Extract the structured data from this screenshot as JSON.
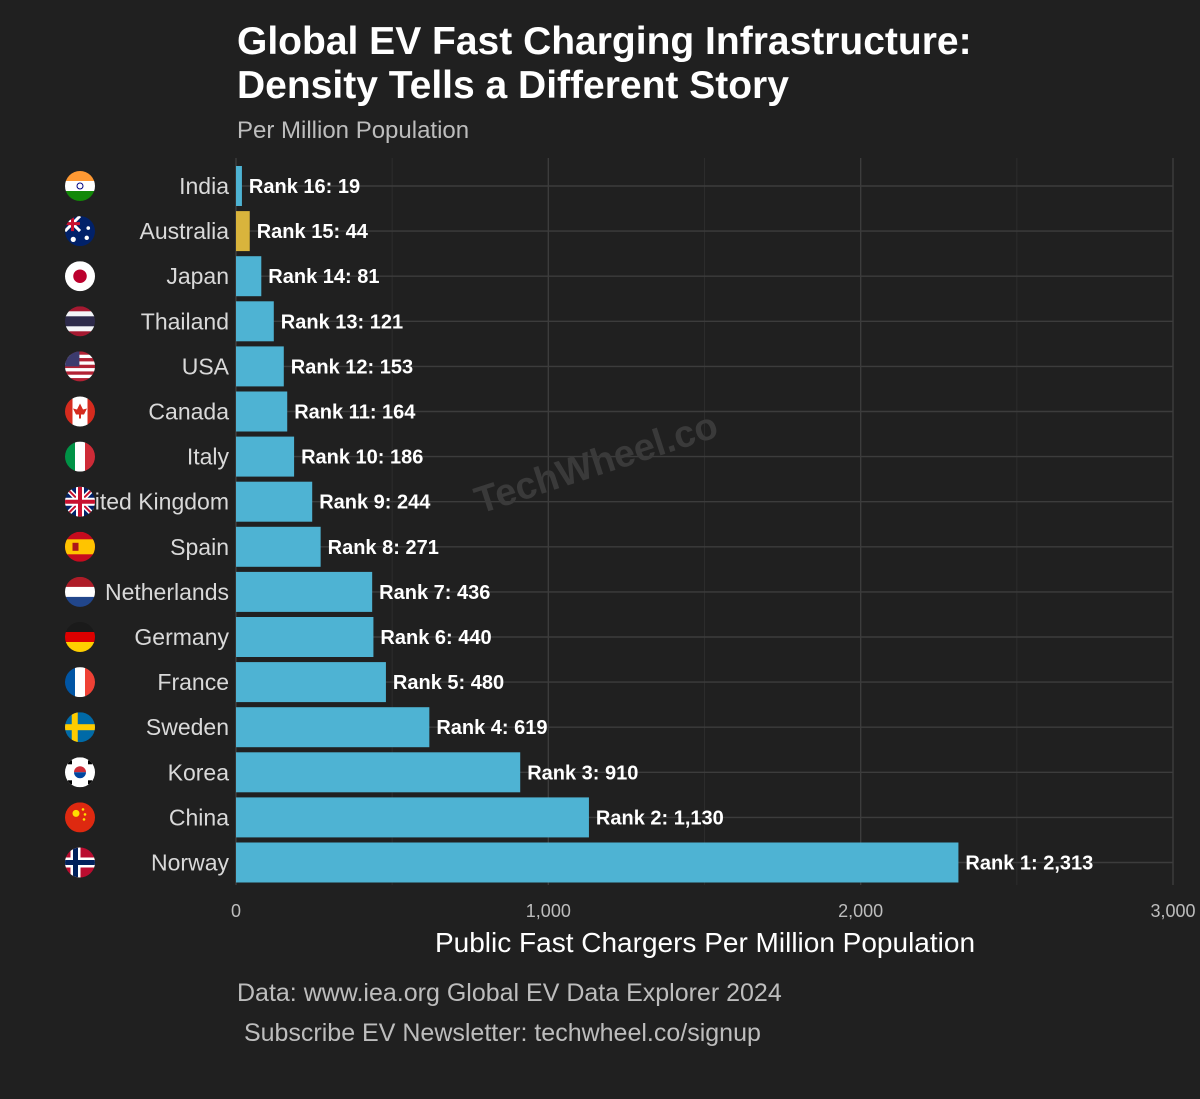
{
  "chart_data": {
    "type": "bar",
    "orientation": "horizontal",
    "title_line1": "Global EV Fast Charging Infrastructure:",
    "title_line2": "Density Tells a Different Story",
    "subtitle": "Per Million Population",
    "xlabel": "Public Fast Chargers Per Million Population",
    "ylabel": "",
    "xlim": [
      0,
      3000
    ],
    "x_ticks": [
      0,
      1000,
      2000,
      3000
    ],
    "x_tick_labels": [
      "0",
      "1,000",
      "2,000",
      "3,000"
    ],
    "grid": true,
    "watermark": "TechWheel.co",
    "categories": [
      "India",
      "Australia",
      "Japan",
      "Thailand",
      "USA",
      "Canada",
      "Italy",
      "United Kingdom",
      "Spain",
      "Netherlands",
      "Germany",
      "France",
      "Sweden",
      "Korea",
      "China",
      "Norway"
    ],
    "values": [
      19,
      44,
      81,
      121,
      153,
      164,
      186,
      244,
      271,
      436,
      440,
      480,
      619,
      910,
      1130,
      2313
    ],
    "ranks": [
      "Rank 16:",
      "Rank 15:",
      "Rank 14:",
      "Rank 13:",
      "Rank 12:",
      "Rank 11:",
      "Rank 10:",
      "Rank 9:",
      "Rank 8:",
      "Rank 7:",
      "Rank 6:",
      "Rank 5:",
      "Rank 4:",
      "Rank 3:",
      "Rank 2:",
      "Rank 1:"
    ],
    "value_labels": [
      "19",
      "44",
      "81",
      "121",
      "153",
      "164",
      "186",
      "244",
      "271",
      "436",
      "440",
      "480",
      "619",
      "910",
      "1,130",
      "2,313"
    ],
    "highlight_category": "Australia",
    "colors": {
      "bar": "#4eb3d3",
      "highlight": "#d9b43c",
      "background": "#202020",
      "grid": "#3c3c3c"
    },
    "flags": [
      "india-flag-icon",
      "australia-flag-icon",
      "japan-flag-icon",
      "thailand-flag-icon",
      "usa-flag-icon",
      "canada-flag-icon",
      "italy-flag-icon",
      "united-kingdom-flag-icon",
      "spain-flag-icon",
      "netherlands-flag-icon",
      "germany-flag-icon",
      "france-flag-icon",
      "sweden-flag-icon",
      "korea-flag-icon",
      "china-flag-icon",
      "norway-flag-icon"
    ]
  },
  "caption": {
    "source": "Data: www.iea.org Global EV Data Explorer 2024",
    "subscribe": " Subscribe EV Newsletter: techwheel.co/signup"
  }
}
